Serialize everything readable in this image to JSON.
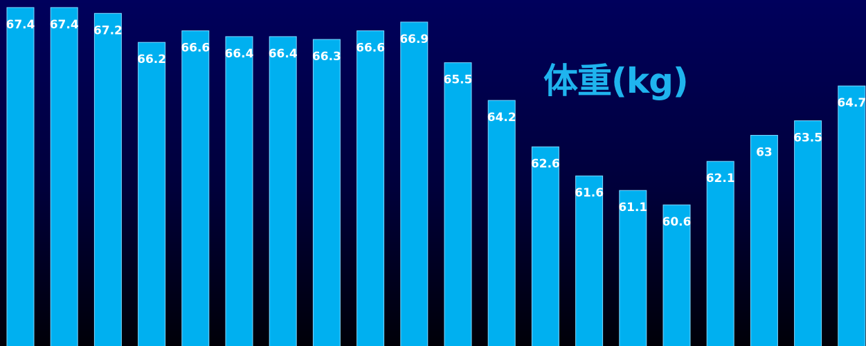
{
  "chart_data": {
    "type": "bar",
    "title": "体重(kg)",
    "values": [
      67.4,
      67.4,
      67.2,
      66.2,
      66.6,
      66.4,
      66.4,
      66.3,
      66.6,
      66.9,
      65.5,
      64.2,
      62.6,
      61.6,
      61.1,
      60.6,
      62.1,
      63,
      63.5,
      64.7
    ],
    "labels": [
      "67.4",
      "67.4",
      "67.2",
      "66.2",
      "66.6",
      "66.4",
      "66.4",
      "66.3",
      "66.6",
      "66.9",
      "65.5",
      "64.2",
      "62.6",
      "61.6",
      "61.1",
      "60.6",
      "62.1",
      "63",
      "63.5",
      "64.7"
    ],
    "data_labels": true,
    "grid": false,
    "legend": "none"
  },
  "colors": {
    "bar_fill": "#00b0f0",
    "bar_outline": "#7fd8ff",
    "title": "#1fb4ee",
    "label_text": "#ffffff",
    "background_top": "#00005c",
    "background_bottom": "#000008"
  }
}
